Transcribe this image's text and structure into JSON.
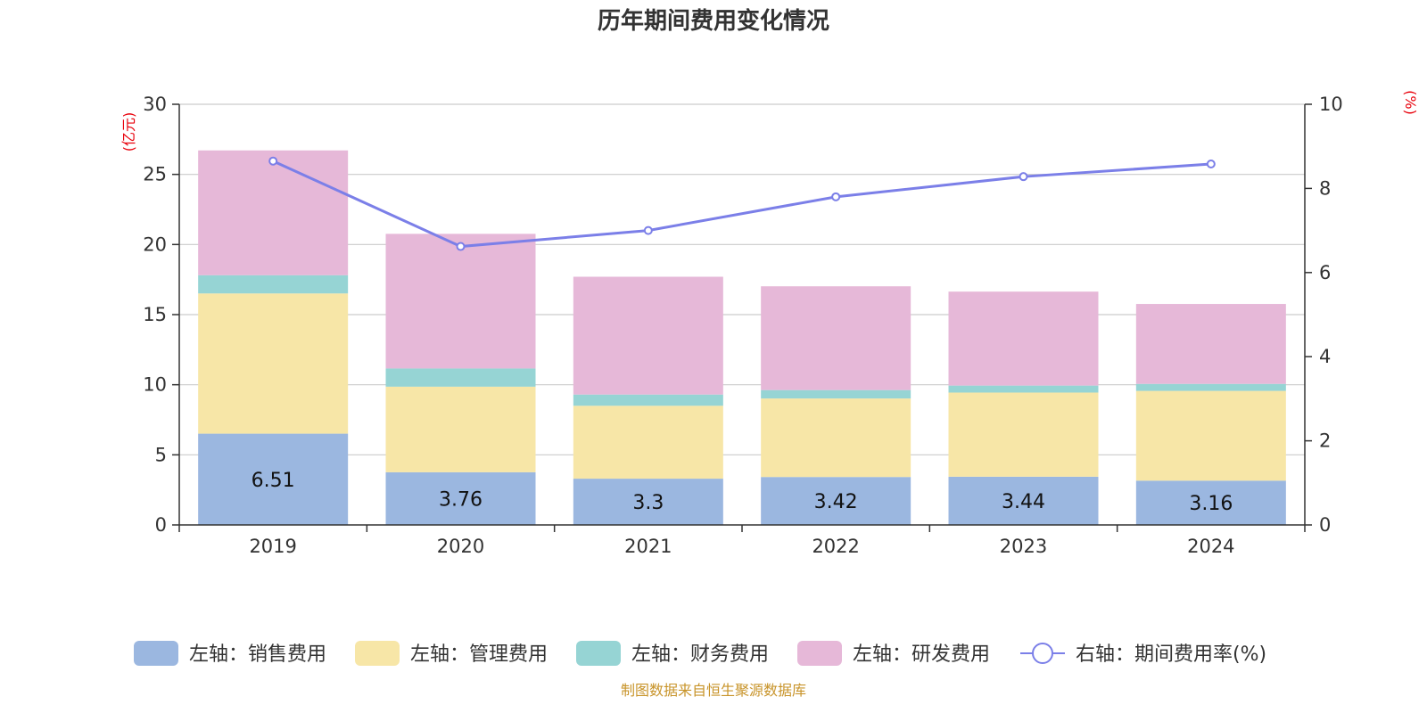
{
  "chart_data": {
    "type": "bar",
    "title": "历年期间费用变化情况",
    "categories": [
      "2019",
      "2020",
      "2021",
      "2022",
      "2023",
      "2024"
    ],
    "y_left": {
      "unit": "(亿元)",
      "min": 0,
      "max": 30,
      "ticks": [
        0,
        5,
        10,
        15,
        20,
        25,
        30
      ]
    },
    "y_right": {
      "unit": "(%)",
      "min": 0,
      "max": 10,
      "ticks": [
        0,
        2,
        4,
        6,
        8,
        10
      ]
    },
    "series": [
      {
        "name": "左轴：销售费用",
        "type": "bar",
        "axis": "left",
        "color": "#9bb7e0",
        "values": [
          6.51,
          3.76,
          3.3,
          3.42,
          3.44,
          3.16
        ],
        "labels": [
          "6.51",
          "3.76",
          "3.3",
          "3.42",
          "3.44",
          "3.16"
        ]
      },
      {
        "name": "左轴：管理费用",
        "type": "bar",
        "axis": "left",
        "color": "#f7e6a7",
        "values": [
          10.0,
          6.1,
          5.2,
          5.6,
          6.0,
          6.4
        ]
      },
      {
        "name": "左轴：财务费用",
        "type": "bar",
        "axis": "left",
        "color": "#96d4d4",
        "values": [
          1.3,
          1.3,
          0.8,
          0.6,
          0.5,
          0.5
        ]
      },
      {
        "name": "左轴：研发费用",
        "type": "bar",
        "axis": "left",
        "color": "#e6b8d8",
        "values": [
          8.9,
          9.6,
          8.4,
          7.4,
          6.7,
          5.7
        ]
      },
      {
        "name": "右轴：期间费用率(%)",
        "type": "line",
        "axis": "right",
        "color": "#7b7fe8",
        "values": [
          8.65,
          6.62,
          7.0,
          7.8,
          8.28,
          8.58
        ]
      }
    ],
    "grid": true,
    "legend_position": "bottom"
  },
  "source_note": "制图数据来自恒生聚源数据库"
}
